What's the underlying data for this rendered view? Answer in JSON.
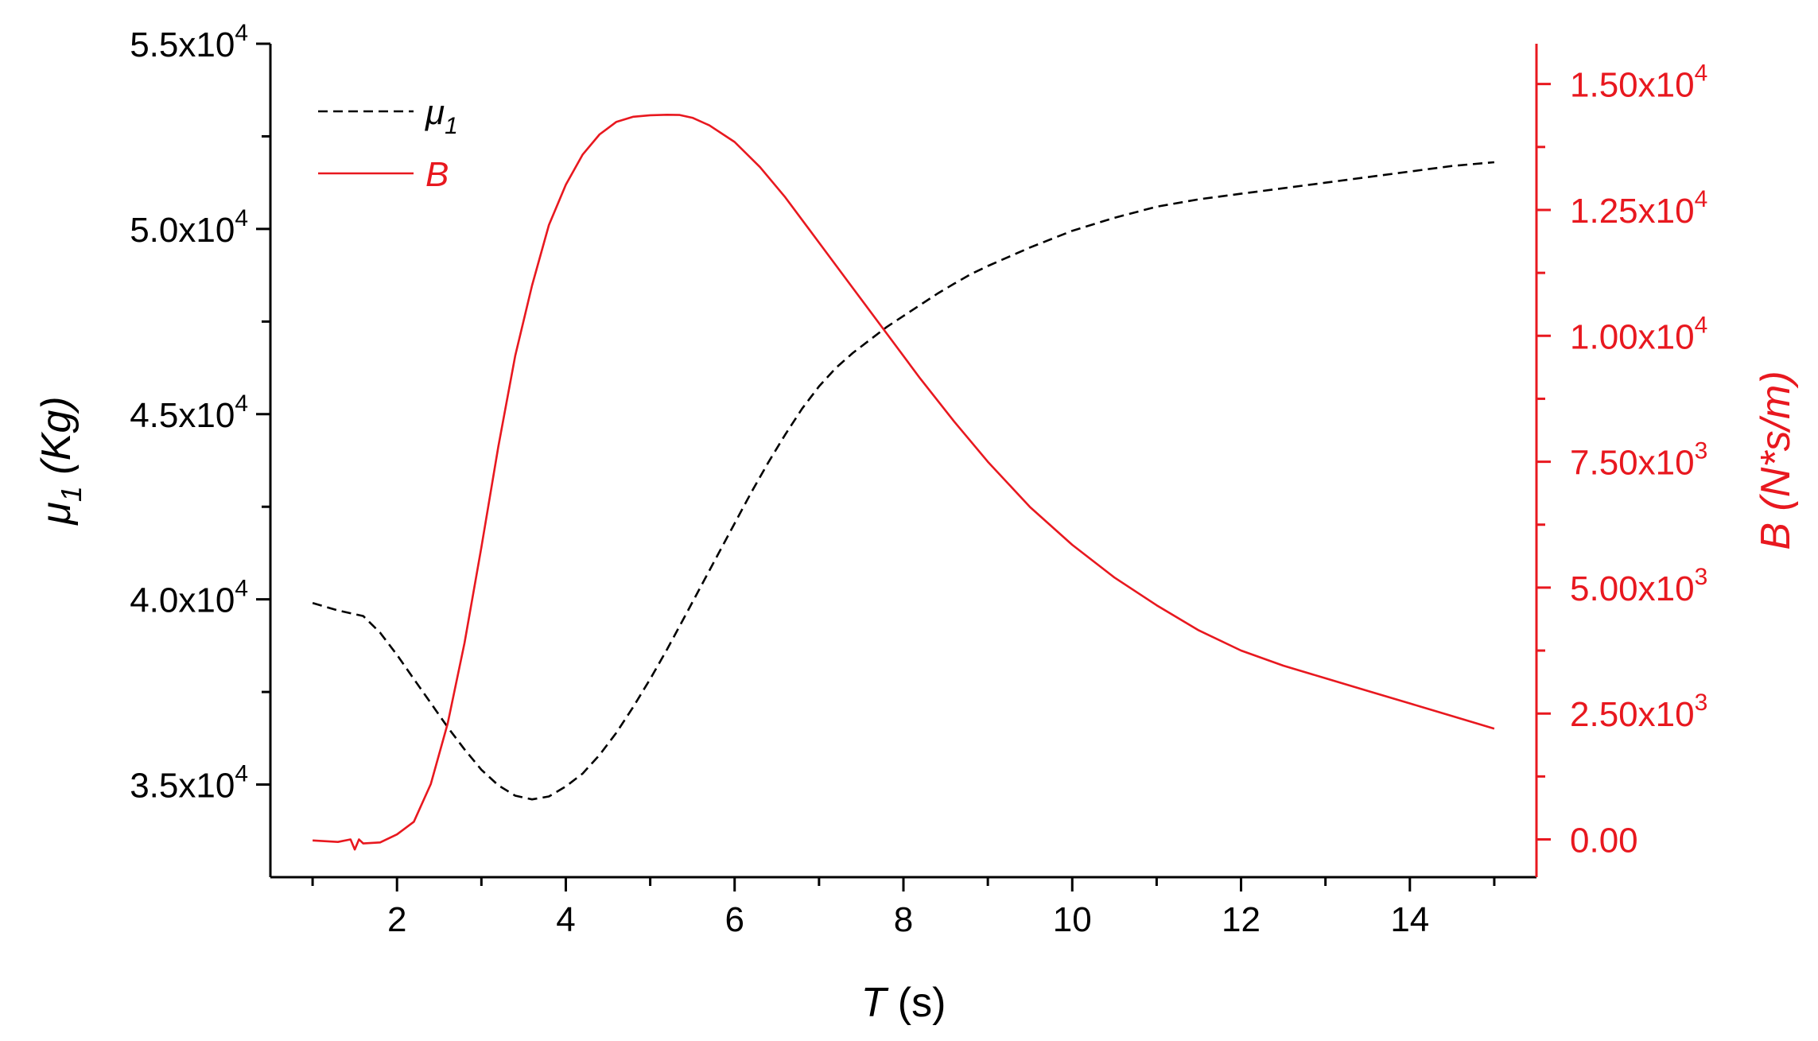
{
  "chart_data": {
    "type": "line",
    "x_label": {
      "var": "T",
      "unit": "(s)"
    },
    "y_left_label": {
      "var": "μ",
      "sub": "1",
      "unit": "(Kg)"
    },
    "y_right_label": {
      "var": "B",
      "unit": "(N*s/m)"
    },
    "x_range": [
      0.5,
      15.5
    ],
    "y_left_range": [
      32500,
      55000
    ],
    "y_right_range": [
      -750,
      15800
    ],
    "x_ticks": [
      {
        "value": 2,
        "label": "2"
      },
      {
        "value": 4,
        "label": "4"
      },
      {
        "value": 6,
        "label": "6"
      },
      {
        "value": 8,
        "label": "8"
      },
      {
        "value": 10,
        "label": "10"
      },
      {
        "value": 12,
        "label": "12"
      },
      {
        "value": 14,
        "label": "14"
      }
    ],
    "y_left_ticks": [
      {
        "value": 35000,
        "mant": "3.5x10",
        "exp": "4"
      },
      {
        "value": 40000,
        "mant": "4.0x10",
        "exp": "4"
      },
      {
        "value": 45000,
        "mant": "4.5x10",
        "exp": "4"
      },
      {
        "value": 50000,
        "mant": "5.0x10",
        "exp": "4"
      },
      {
        "value": 55000,
        "mant": "5.5x10",
        "exp": "4"
      }
    ],
    "y_right_ticks": [
      {
        "value": 0,
        "mant": "0.00",
        "exp": ""
      },
      {
        "value": 2500,
        "mant": "2.50x10",
        "exp": "3"
      },
      {
        "value": 5000,
        "mant": "5.00x10",
        "exp": "3"
      },
      {
        "value": 7500,
        "mant": "7.50x10",
        "exp": "3"
      },
      {
        "value": 10000,
        "mant": "1.00x10",
        "exp": "4"
      },
      {
        "value": 12500,
        "mant": "1.25x10",
        "exp": "4"
      },
      {
        "value": 15000,
        "mant": "1.50x10",
        "exp": "4"
      }
    ],
    "grid": false,
    "legend_position": "top-left",
    "series": [
      {
        "name": "μ",
        "name_sub": "1",
        "axis": "left",
        "color": "#000000",
        "dash": "dashed",
        "x": [
          1.0,
          1.3,
          1.6,
          1.8,
          2.0,
          2.2,
          2.4,
          2.6,
          2.8,
          3.0,
          3.2,
          3.4,
          3.6,
          3.8,
          4.0,
          4.2,
          4.4,
          4.6,
          4.8,
          5.0,
          5.2,
          5.4,
          5.6,
          5.8,
          6.0,
          6.2,
          6.4,
          6.6,
          6.8,
          7.0,
          7.2,
          7.4,
          7.6,
          7.8,
          8.0,
          8.2,
          8.4,
          8.6,
          8.8,
          9.0,
          9.5,
          10.0,
          10.5,
          11.0,
          11.5,
          12.0,
          12.5,
          13.0,
          13.5,
          14.0,
          14.5,
          15.0
        ],
        "y": [
          39900,
          39700,
          39550,
          39100,
          38500,
          37850,
          37200,
          36550,
          35950,
          35400,
          34980,
          34700,
          34600,
          34680,
          34950,
          35300,
          35800,
          36400,
          37100,
          37850,
          38650,
          39500,
          40350,
          41200,
          42050,
          42900,
          43700,
          44450,
          45150,
          45750,
          46250,
          46650,
          47000,
          47350,
          47650,
          47950,
          48250,
          48520,
          48780,
          49000,
          49500,
          49950,
          50300,
          50600,
          50800,
          50950,
          51100,
          51250,
          51400,
          51550,
          51700,
          51800
        ]
      },
      {
        "name": "B",
        "axis": "right",
        "color": "#e8181f",
        "dash": "solid",
        "x": [
          1.0,
          1.3,
          1.45,
          1.5,
          1.55,
          1.6,
          1.8,
          2.0,
          2.2,
          2.4,
          2.6,
          2.8,
          3.0,
          3.2,
          3.4,
          3.6,
          3.8,
          4.0,
          4.2,
          4.4,
          4.6,
          4.8,
          5.0,
          5.2,
          5.35,
          5.5,
          5.7,
          6.0,
          6.3,
          6.6,
          7.0,
          7.4,
          7.8,
          8.2,
          8.6,
          9.0,
          9.5,
          10.0,
          10.5,
          11.0,
          11.5,
          12.0,
          12.5,
          13.0,
          13.5,
          14.0,
          14.5,
          15.0
        ],
        "y": [
          -20,
          -50,
          0,
          -200,
          0,
          -80,
          -60,
          100,
          350,
          1100,
          2300,
          3900,
          5800,
          7800,
          9600,
          11000,
          12200,
          13000,
          13600,
          14000,
          14250,
          14350,
          14380,
          14390,
          14385,
          14330,
          14180,
          13850,
          13350,
          12750,
          11850,
          10950,
          10050,
          9150,
          8300,
          7500,
          6600,
          5850,
          5200,
          4650,
          4150,
          3750,
          3450,
          3200,
          2950,
          2700,
          2450,
          2200
        ]
      }
    ]
  }
}
